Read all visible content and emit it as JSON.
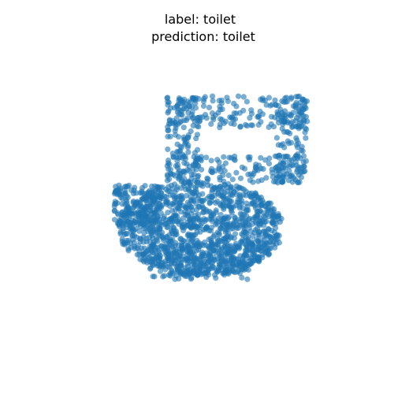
{
  "chart_data": {
    "type": "scatter",
    "title_lines": [
      "label: toilet",
      "prediction: toilet"
    ],
    "xlabel": "",
    "ylabel": "",
    "axes_visible": false,
    "grid": false,
    "legend": "none",
    "series": [
      {
        "color": "#1f77b4",
        "alpha": 0.6,
        "point_count_estimate": 1800
      }
    ],
    "shape_description_regions": [
      {
        "part": "tank",
        "x_range": [
          0.42,
          0.78
        ],
        "y_range": [
          0.24,
          0.43
        ]
      },
      {
        "part": "bowl",
        "x_range": [
          0.29,
          0.71
        ],
        "y_range": [
          0.4,
          0.71
        ]
      }
    ]
  }
}
